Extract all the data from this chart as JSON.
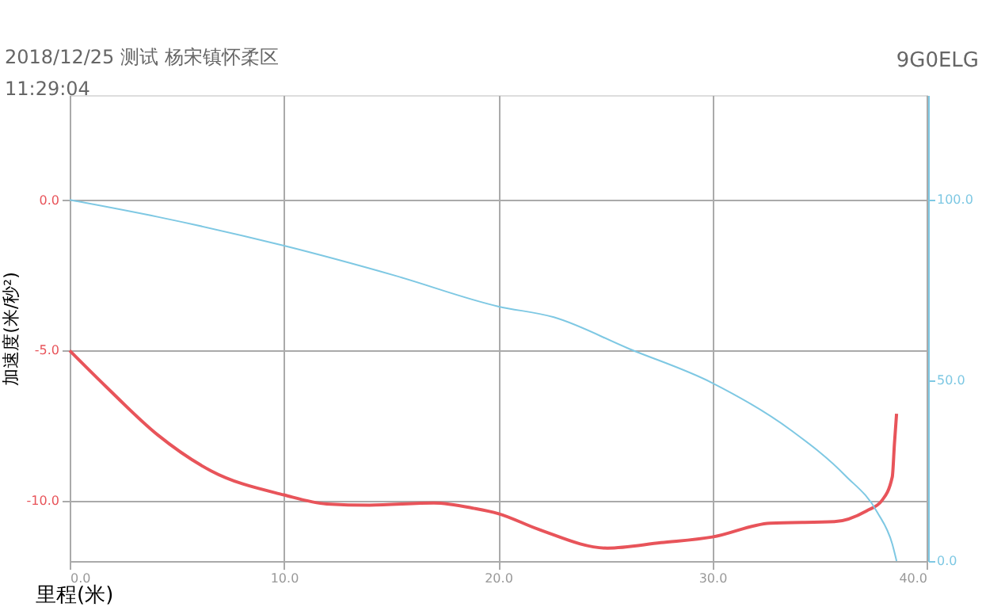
{
  "chart_data": {
    "type": "line",
    "title": "2018/12/25 测试 杨宋镇怀柔区",
    "subtitle": "11:29:04",
    "xlabel": "里程(米)",
    "ylabel": "加速度(米/秒²)",
    "annotations": [
      "9G0ELG"
    ],
    "xlim": [
      0,
      40
    ],
    "xticks": [
      {
        "value": 0,
        "label": "0.0"
      },
      {
        "value": 10,
        "label": "10.0"
      },
      {
        "value": 20,
        "label": "20.0"
      },
      {
        "value": 30,
        "label": "30.0"
      },
      {
        "value": 40,
        "label": "40.0"
      }
    ],
    "ylim": [
      -12,
      3.5
    ],
    "yticks": [
      {
        "value": -10,
        "label": "-10.0"
      },
      {
        "value": -5,
        "label": "-5.0"
      },
      {
        "value": 0,
        "label": "0.0"
      }
    ],
    "y2lim": [
      0,
      129
    ],
    "y2ticks": [
      {
        "value": 0,
        "label": "0.0"
      },
      {
        "value": 50,
        "label": "50.0"
      },
      {
        "value": 100,
        "label": "100.0"
      }
    ],
    "grid": true,
    "marker": "none",
    "line_style": "solid",
    "series": [
      {
        "color": "#e8545a",
        "x": [
          0,
          1.7,
          4.1,
          6.6,
          10,
          12,
          14,
          17,
          18.9,
          20,
          21.9,
          25.1,
          27.6,
          30,
          32.7,
          35.7,
          37.2,
          37.9,
          38.4,
          38.5,
          38.6
        ],
        "values": [
          -5,
          -6.2,
          -7.8,
          -9.0,
          -9.8,
          -10.1,
          -10.14,
          -10.07,
          -10.25,
          -10.42,
          -10.95,
          -11.57,
          -11.39,
          -11.2,
          -10.74,
          -10.69,
          -10.33,
          -10.0,
          -9.2,
          -8.1,
          -7.1
        ]
      },
      {
        "color": "#7ec8e3",
        "axis": "y2",
        "x": [
          0,
          4.1,
          10,
          15.2,
          20,
          22.6,
          26.1,
          30,
          33.7,
          36.2,
          37.7,
          38.4,
          38.6
        ],
        "values": [
          100,
          95.3,
          87.3,
          79,
          70.5,
          67.5,
          58.8,
          49.3,
          36.1,
          23.7,
          13.5,
          4.7,
          0
        ]
      }
    ]
  }
}
